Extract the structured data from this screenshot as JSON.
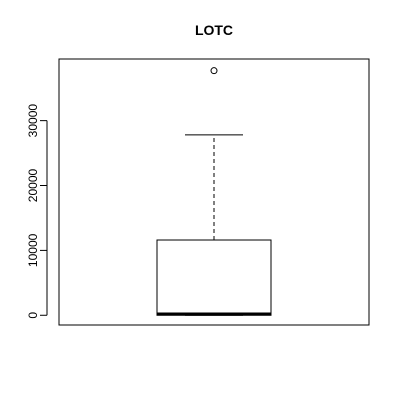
{
  "chart_data": {
    "type": "box",
    "title": "LOTC",
    "xlabel": "",
    "ylabel": "",
    "ylim": [
      -1500,
      39500
    ],
    "y_ticks": [
      0,
      10000,
      20000,
      30000
    ],
    "y_tick_labels": [
      "0",
      "10000",
      "20000",
      "30000"
    ],
    "grid": false,
    "box": {
      "whisker_low": 0,
      "q1": 0,
      "median": 200,
      "q3": 11600,
      "whisker_high": 27800,
      "outliers": [
        37700
      ]
    }
  }
}
